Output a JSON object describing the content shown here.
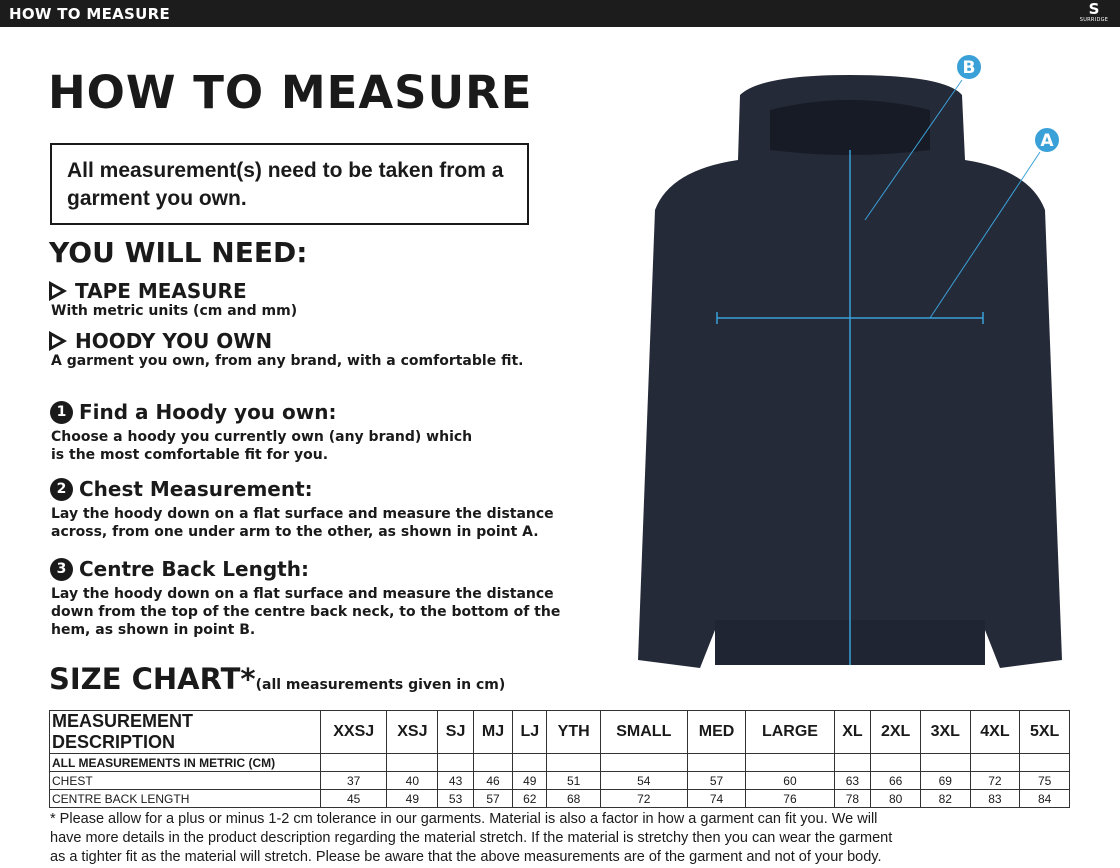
{
  "header": {
    "title": "HOW TO MEASURE",
    "logo_text": "SURRIDGE"
  },
  "page_title": "HOW TO MEASURE",
  "notice": "All measurement(s) need to be taken from a garment you own.",
  "you_will_need": {
    "title": "YOU WILL NEED:",
    "items": [
      {
        "title": "TAPE MEASURE",
        "desc": "With metric units (cm and mm)"
      },
      {
        "title": "HOODY YOU OWN",
        "desc": "A garment you own, from any brand, with a comfortable fit."
      }
    ]
  },
  "steps": [
    {
      "num": "1",
      "title": "Find a Hoody you own:",
      "desc": "Choose a hoody you currently own (any brand) which is the most comfortable fit for you."
    },
    {
      "num": "2",
      "title": "Chest Measurement:",
      "desc": "Lay the hoody down on a flat surface and measure the distance across, from one under arm to the other, as shown in point A."
    },
    {
      "num": "3",
      "title": "Centre Back Length:",
      "desc": "Lay the hoody down on a flat surface and measure the distance down from the top of the centre back neck, to the bottom of the hem, as shown in point B."
    }
  ],
  "diagram": {
    "point_a": "A",
    "point_b": "B",
    "accent": "#3aa0d8"
  },
  "size_chart": {
    "title": "SIZE CHART",
    "asterisk": "*",
    "subtitle": "(all measurements given in cm)",
    "header": "MEASUREMENT DESCRIPTION",
    "sizes": [
      "XXSJ",
      "XSJ",
      "SJ",
      "MJ",
      "LJ",
      "YTH",
      "SMALL",
      "MED",
      "LARGE",
      "XL",
      "2XL",
      "3XL",
      "4XL",
      "5XL"
    ],
    "metric_row": "ALL MEASUREMENTS IN METRIC (CM)",
    "rows": [
      {
        "label": "CHEST",
        "values": [
          "37",
          "40",
          "43",
          "46",
          "49",
          "51",
          "54",
          "57",
          "60",
          "63",
          "66",
          "69",
          "72",
          "75"
        ]
      },
      {
        "label": "CENTRE BACK LENGTH",
        "values": [
          "45",
          "49",
          "53",
          "57",
          "62",
          "68",
          "72",
          "74",
          "76",
          "78",
          "80",
          "82",
          "83",
          "84"
        ]
      }
    ]
  },
  "footnote": "* Please allow for a plus or minus 1-2 cm tolerance in our garments. Material is also a factor in how a garment can fit you. We will have more details in the product description regarding the material stretch.  If the material is stretchy then you can wear the garment as a tighter fit as the material will stretch.  Please be aware that the above measurements are of the garment and not of your body."
}
